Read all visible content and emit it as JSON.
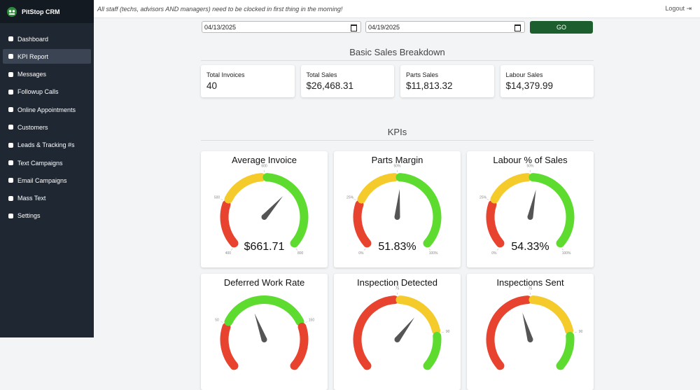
{
  "sidebar": {
    "brand": "PitStop CRM",
    "nav": [
      "Dashboard",
      "KPI Report",
      "Messages",
      "Followup Calls",
      "Online Appointments",
      "Customers",
      "Leads & Tracking #s",
      "Text Campaigns",
      "Email Campaigns",
      "Mass Text",
      "Settings"
    ],
    "active": 1
  },
  "topbar": {
    "notice": "All staff (techs, advisors AND managers) need to be clocked in first thing in the morning!",
    "logout": "Logout"
  },
  "filters": {
    "start_date": "04/13/2025",
    "end_date": "04/19/2025",
    "button": "GO"
  },
  "sales": {
    "heading": "Basic Sales Breakdown",
    "cards": [
      {
        "label": "Total Invoices",
        "value": "40"
      },
      {
        "label": "Total Sales",
        "value": "$26,468.31"
      },
      {
        "label": "Parts Sales",
        "value": "$11,813.32"
      },
      {
        "label": "Labour Sales",
        "value": "$14,379.99"
      }
    ]
  },
  "kpis": {
    "heading": "KPIs",
    "gauges": [
      {
        "title": "Average Invoice",
        "range": [
          400,
          800
        ],
        "ticks": [
          400,
          500,
          600,
          800
        ],
        "bands": [
          {
            "from": 400,
            "to": 500,
            "color": "#e8432e"
          },
          {
            "from": 500,
            "to": 600,
            "color": "#f4cb2a"
          },
          {
            "from": 600,
            "to": 800,
            "color": "#5ddc2f"
          }
        ],
        "value": 661.71,
        "value_label": "$661.71"
      },
      {
        "title": "Parts Margin",
        "range": [
          0,
          100
        ],
        "ticks": [
          {
            "value": 0,
            "label": "0%"
          },
          {
            "value": 25,
            "label": "25%"
          },
          {
            "value": 50,
            "label": "50%"
          },
          {
            "value": 100,
            "label": "100%"
          }
        ],
        "bands": [
          {
            "from": 0,
            "to": 25,
            "color": "#e8432e"
          },
          {
            "from": 25,
            "to": 50,
            "color": "#f4cb2a"
          },
          {
            "from": 50,
            "to": 100,
            "color": "#5ddc2f"
          }
        ],
        "value": 51.83,
        "value_label": "51.83%"
      },
      {
        "title": "Labour % of Sales",
        "range": [
          0,
          100
        ],
        "ticks": [
          {
            "value": 0,
            "label": "0%"
          },
          {
            "value": 25,
            "label": "25%"
          },
          {
            "value": 50,
            "label": "50%"
          },
          {
            "value": 100,
            "label": "100%"
          }
        ],
        "bands": [
          {
            "from": 0,
            "to": 25,
            "color": "#e8432e"
          },
          {
            "from": 25,
            "to": 50,
            "color": "#f4cb2a"
          },
          {
            "from": 50,
            "to": 100,
            "color": "#5ddc2f"
          }
        ],
        "value": 54.33,
        "value_label": "54.33%"
      },
      {
        "title": "Deferred Work Rate",
        "range": [
          0,
          200
        ],
        "ticks": [
          50,
          150
        ],
        "bands": [
          {
            "from": 0,
            "to": 50,
            "color": "#e8432e"
          },
          {
            "from": 50,
            "to": 150,
            "color": "#5ddc2f"
          },
          {
            "from": 150,
            "to": 200,
            "color": "#e8432e"
          }
        ],
        "value": 85
      },
      {
        "title": "Inspection Detected",
        "range": [
          50,
          100
        ],
        "ticks": [
          75,
          90
        ],
        "bands": [
          {
            "from": 50,
            "to": 75,
            "color": "#e8432e"
          },
          {
            "from": 75,
            "to": 90,
            "color": "#f4cb2a"
          },
          {
            "from": 90,
            "to": 100,
            "color": "#5ddc2f"
          }
        ],
        "value": 82
      },
      {
        "title": "Inspections Sent",
        "range": [
          50,
          100
        ],
        "ticks": [
          75,
          90
        ],
        "bands": [
          {
            "from": 50,
            "to": 75,
            "color": "#e8432e"
          },
          {
            "from": 75,
            "to": 90,
            "color": "#f4cb2a"
          },
          {
            "from": 90,
            "to": 100,
            "color": "#5ddc2f"
          }
        ],
        "value": 72
      }
    ]
  }
}
